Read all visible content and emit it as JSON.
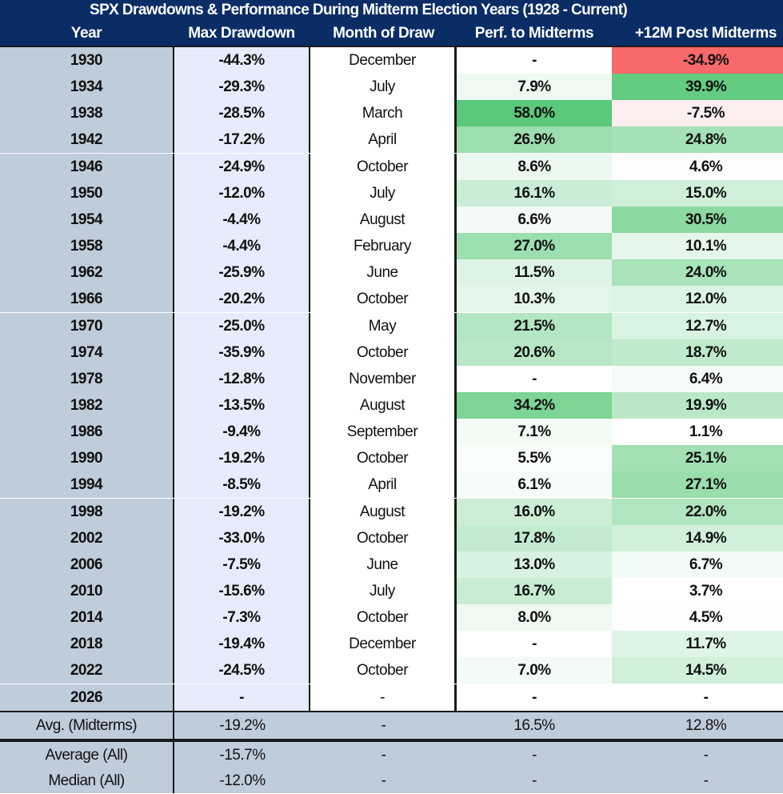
{
  "title": "SPX Drawdowns & Performance During Midterm Election Years (1928 - Current)",
  "columns": [
    "Year",
    "Max Drawdown",
    "Month of Draw",
    "Perf. to Midterms",
    "+12M Post Midterms"
  ],
  "colors": {
    "header_bg": "#0b2d66",
    "year_col_bg": "#bfccda",
    "drawdown_col_bg": "#e6ecfb",
    "negative_strong": "#f8696b",
    "negative_light": "#fdeef0",
    "positive_strong": "#5ac97a"
  },
  "rows": [
    {
      "year": "1930",
      "max_drawdown": "-44.3%",
      "month": "December",
      "perf_to_midterms": "-",
      "post_12m": "-34.9%"
    },
    {
      "year": "1934",
      "max_drawdown": "-29.3%",
      "month": "July",
      "perf_to_midterms": "7.9%",
      "post_12m": "39.9%"
    },
    {
      "year": "1938",
      "max_drawdown": "-28.5%",
      "month": "March",
      "perf_to_midterms": "58.0%",
      "post_12m": "-7.5%"
    },
    {
      "year": "1942",
      "max_drawdown": "-17.2%",
      "month": "April",
      "perf_to_midterms": "26.9%",
      "post_12m": "24.8%"
    },
    {
      "year": "1946",
      "max_drawdown": "-24.9%",
      "month": "October",
      "perf_to_midterms": "8.6%",
      "post_12m": "4.6%"
    },
    {
      "year": "1950",
      "max_drawdown": "-12.0%",
      "month": "July",
      "perf_to_midterms": "16.1%",
      "post_12m": "15.0%"
    },
    {
      "year": "1954",
      "max_drawdown": "-4.4%",
      "month": "August",
      "perf_to_midterms": "6.6%",
      "post_12m": "30.5%"
    },
    {
      "year": "1958",
      "max_drawdown": "-4.4%",
      "month": "February",
      "perf_to_midterms": "27.0%",
      "post_12m": "10.1%"
    },
    {
      "year": "1962",
      "max_drawdown": "-25.9%",
      "month": "June",
      "perf_to_midterms": "11.5%",
      "post_12m": "24.0%"
    },
    {
      "year": "1966",
      "max_drawdown": "-20.2%",
      "month": "October",
      "perf_to_midterms": "10.3%",
      "post_12m": "12.0%"
    },
    {
      "year": "1970",
      "max_drawdown": "-25.0%",
      "month": "May",
      "perf_to_midterms": "21.5%",
      "post_12m": "12.7%"
    },
    {
      "year": "1974",
      "max_drawdown": "-35.9%",
      "month": "October",
      "perf_to_midterms": "20.6%",
      "post_12m": "18.7%"
    },
    {
      "year": "1978",
      "max_drawdown": "-12.8%",
      "month": "November",
      "perf_to_midterms": "-",
      "post_12m": "6.4%"
    },
    {
      "year": "1982",
      "max_drawdown": "-13.5%",
      "month": "August",
      "perf_to_midterms": "34.2%",
      "post_12m": "19.9%"
    },
    {
      "year": "1986",
      "max_drawdown": "-9.4%",
      "month": "September",
      "perf_to_midterms": "7.1%",
      "post_12m": "1.1%"
    },
    {
      "year": "1990",
      "max_drawdown": "-19.2%",
      "month": "October",
      "perf_to_midterms": "5.5%",
      "post_12m": "25.1%"
    },
    {
      "year": "1994",
      "max_drawdown": "-8.5%",
      "month": "April",
      "perf_to_midterms": "6.1%",
      "post_12m": "27.1%"
    },
    {
      "year": "1998",
      "max_drawdown": "-19.2%",
      "month": "August",
      "perf_to_midterms": "16.0%",
      "post_12m": "22.0%"
    },
    {
      "year": "2002",
      "max_drawdown": "-33.0%",
      "month": "October",
      "perf_to_midterms": "17.8%",
      "post_12m": "14.9%"
    },
    {
      "year": "2006",
      "max_drawdown": "-7.5%",
      "month": "June",
      "perf_to_midterms": "13.0%",
      "post_12m": "6.7%"
    },
    {
      "year": "2010",
      "max_drawdown": "-15.6%",
      "month": "July",
      "perf_to_midterms": "16.7%",
      "post_12m": "3.7%"
    },
    {
      "year": "2014",
      "max_drawdown": "-7.3%",
      "month": "October",
      "perf_to_midterms": "8.0%",
      "post_12m": "4.5%"
    },
    {
      "year": "2018",
      "max_drawdown": "-19.4%",
      "month": "December",
      "perf_to_midterms": "-",
      "post_12m": "11.7%"
    },
    {
      "year": "2022",
      "max_drawdown": "-24.5%",
      "month": "October",
      "perf_to_midterms": "7.0%",
      "post_12m": "14.5%"
    },
    {
      "year": "2026",
      "max_drawdown": "-",
      "month": "-",
      "perf_to_midterms": "-",
      "post_12m": "-"
    }
  ],
  "summary": [
    {
      "label": "Avg. (Midterms)",
      "max_drawdown": "-19.2%",
      "month": "-",
      "perf_to_midterms": "16.5%",
      "post_12m": "12.8%"
    },
    {
      "label": "Average (All)",
      "max_drawdown": "-15.7%",
      "month": "-",
      "perf_to_midterms": "-",
      "post_12m": "-"
    },
    {
      "label": "Median (All)",
      "max_drawdown": "-12.0%",
      "month": "-",
      "perf_to_midterms": "-",
      "post_12m": "-"
    }
  ],
  "chart_data": {
    "type": "table",
    "title": "SPX Drawdowns & Performance During Midterm Election Years (1928 - Current)",
    "columns": [
      "Year",
      "Max Drawdown",
      "Month of Draw",
      "Perf. to Midterms",
      "+12M Post Midterms"
    ],
    "heatmap_columns": [
      "Perf. to Midterms",
      "+12M Post Midterms"
    ],
    "years": [
      1930,
      1934,
      1938,
      1942,
      1946,
      1950,
      1954,
      1958,
      1962,
      1966,
      1970,
      1974,
      1978,
      1982,
      1986,
      1990,
      1994,
      1998,
      2002,
      2006,
      2010,
      2014,
      2018,
      2022,
      2026
    ],
    "max_drawdown_pct": [
      -44.3,
      -29.3,
      -28.5,
      -17.2,
      -24.9,
      -12.0,
      -4.4,
      -4.4,
      -25.9,
      -20.2,
      -25.0,
      -35.9,
      -12.8,
      -13.5,
      -9.4,
      -19.2,
      -8.5,
      -19.2,
      -33.0,
      -7.5,
      -15.6,
      -7.3,
      -19.4,
      -24.5,
      null
    ],
    "perf_to_midterms_pct": [
      null,
      7.9,
      58.0,
      26.9,
      8.6,
      16.1,
      6.6,
      27.0,
      11.5,
      10.3,
      21.5,
      20.6,
      null,
      34.2,
      7.1,
      5.5,
      6.1,
      16.0,
      17.8,
      13.0,
      16.7,
      8.0,
      null,
      7.0,
      null
    ],
    "post_12m_pct": [
      -34.9,
      39.9,
      -7.5,
      24.8,
      4.6,
      15.0,
      30.5,
      10.1,
      24.0,
      12.0,
      12.7,
      18.7,
      6.4,
      19.9,
      1.1,
      25.1,
      27.1,
      22.0,
      14.9,
      6.7,
      3.7,
      4.5,
      11.7,
      14.5,
      null
    ],
    "averages": {
      "avg_midterms": {
        "max_drawdown": -19.2,
        "perf_to_midterms": 16.5,
        "post_12m": 12.8
      },
      "average_all": {
        "max_drawdown": -15.7
      },
      "median_all": {
        "max_drawdown": -12.0
      }
    }
  }
}
